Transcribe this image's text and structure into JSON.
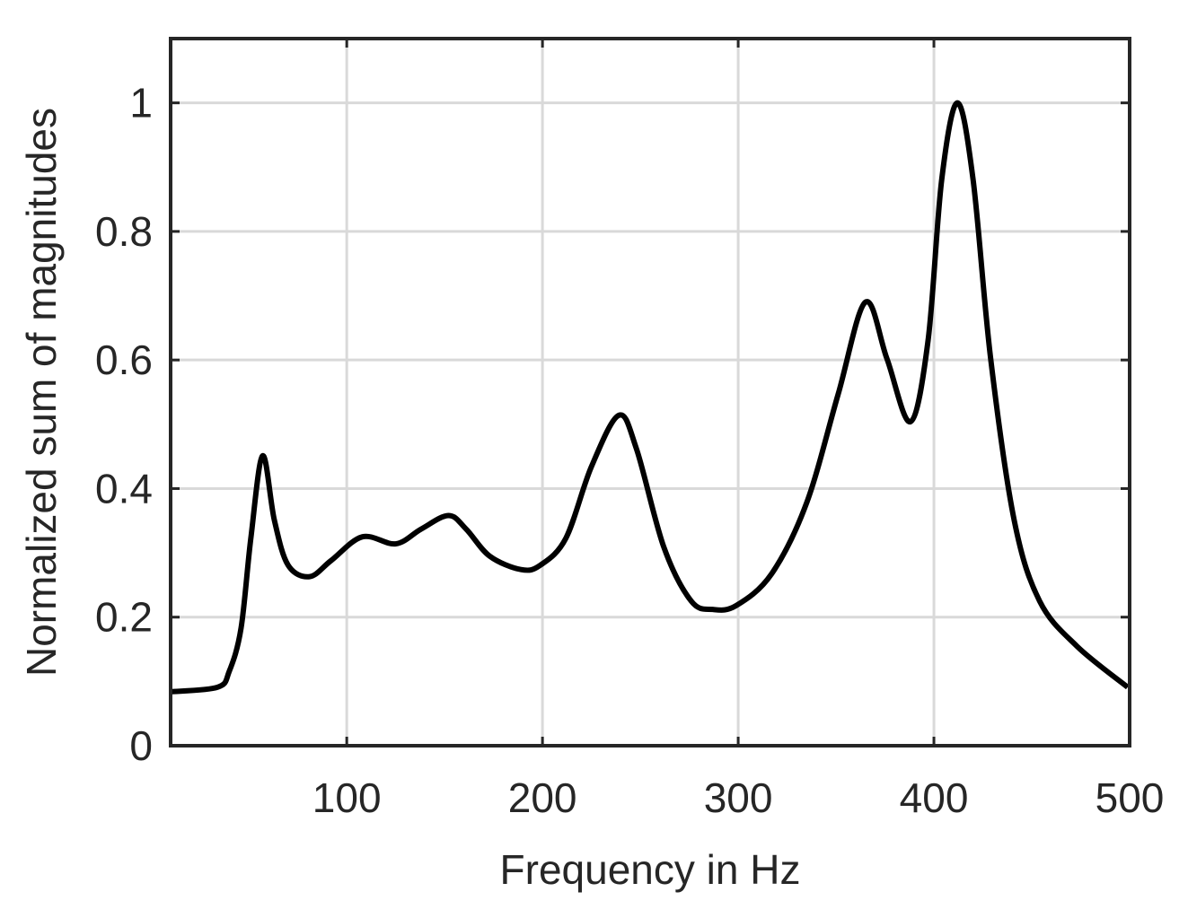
{
  "chart_data": {
    "type": "line",
    "xlabel": "Frequency in Hz",
    "ylabel": "Normalized sum of magnitudes",
    "x": [
      10,
      34,
      40,
      46,
      51,
      57,
      63,
      70,
      81,
      92,
      108,
      125,
      138,
      152,
      161,
      173,
      189,
      199,
      212,
      225,
      239,
      248,
      262,
      276,
      287,
      299,
      317,
      335,
      351,
      365,
      376,
      388,
      397,
      404,
      412,
      420,
      429,
      441,
      454,
      473,
      499
    ],
    "series": [
      {
        "color": "#000000",
        "values": [
          0.084,
          0.091,
          0.116,
          0.183,
          0.323,
          0.451,
          0.351,
          0.281,
          0.263,
          0.288,
          0.325,
          0.314,
          0.337,
          0.358,
          0.337,
          0.295,
          0.274,
          0.281,
          0.323,
          0.434,
          0.514,
          0.462,
          0.309,
          0.225,
          0.212,
          0.218,
          0.267,
          0.378,
          0.546,
          0.69,
          0.602,
          0.504,
          0.63,
          0.881,
          1.0,
          0.881,
          0.602,
          0.351,
          0.225,
          0.155,
          0.091
        ]
      }
    ],
    "xlim": [
      10,
      500
    ],
    "ylim": [
      0,
      1.1
    ],
    "xticks": [
      100,
      200,
      300,
      400,
      500
    ],
    "yticks": [
      0,
      0.2,
      0.4,
      0.6,
      0.8,
      1
    ],
    "grid": true
  }
}
